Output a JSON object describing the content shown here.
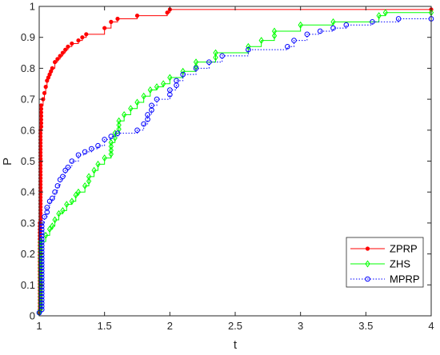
{
  "chart_data": {
    "type": "line",
    "xlabel": "t",
    "ylabel": "P",
    "xlim": [
      1,
      4
    ],
    "ylim": [
      0,
      1
    ],
    "x_ticks": [
      1,
      1.5,
      2,
      2.5,
      3,
      3.5,
      4
    ],
    "x_tick_labels": [
      "1",
      "1.5",
      "2",
      "2.5",
      "3",
      "3.5",
      "4"
    ],
    "y_ticks": [
      0,
      0.1,
      0.2,
      0.3,
      0.4,
      0.5,
      0.6,
      0.7,
      0.8,
      0.9,
      1
    ],
    "y_tick_labels": [
      "0",
      "0.1",
      "0.2",
      "0.3",
      "0.4",
      "0.5",
      "0.6",
      "0.7",
      "0.8",
      "0.9",
      "1"
    ],
    "grid": false,
    "legend_position": "bottom-right",
    "series": [
      {
        "name": "ZPRP",
        "color": "#ff0000",
        "line_style": "solid",
        "marker": "dot",
        "points": [
          [
            1,
            0.01
          ],
          [
            1.005,
            0.3
          ],
          [
            1.01,
            0.6
          ],
          [
            1.015,
            0.68
          ],
          [
            1.03,
            0.7
          ],
          [
            1.04,
            0.72
          ],
          [
            1.05,
            0.74
          ],
          [
            1.06,
            0.76
          ],
          [
            1.07,
            0.77
          ],
          [
            1.08,
            0.78
          ],
          [
            1.09,
            0.79
          ],
          [
            1.1,
            0.8
          ],
          [
            1.12,
            0.82
          ],
          [
            1.14,
            0.83
          ],
          [
            1.16,
            0.84
          ],
          [
            1.18,
            0.85
          ],
          [
            1.2,
            0.86
          ],
          [
            1.22,
            0.87
          ],
          [
            1.25,
            0.88
          ],
          [
            1.3,
            0.89
          ],
          [
            1.33,
            0.9
          ],
          [
            1.36,
            0.91
          ],
          [
            1.5,
            0.93
          ],
          [
            1.55,
            0.95
          ],
          [
            1.6,
            0.96
          ],
          [
            1.75,
            0.97
          ],
          [
            1.98,
            0.98
          ],
          [
            2.0,
            0.99
          ],
          [
            4,
            0.99
          ]
        ]
      },
      {
        "name": "ZHS",
        "color": "#00ff00",
        "line_style": "solid",
        "marker": "diamond",
        "points": [
          [
            1,
            0.01
          ],
          [
            1.01,
            0.24
          ],
          [
            1.05,
            0.26
          ],
          [
            1.08,
            0.28
          ],
          [
            1.1,
            0.29
          ],
          [
            1.12,
            0.31
          ],
          [
            1.15,
            0.33
          ],
          [
            1.18,
            0.34
          ],
          [
            1.21,
            0.36
          ],
          [
            1.25,
            0.37
          ],
          [
            1.28,
            0.39
          ],
          [
            1.3,
            0.4
          ],
          [
            1.35,
            0.42
          ],
          [
            1.38,
            0.45
          ],
          [
            1.42,
            0.47
          ],
          [
            1.45,
            0.49
          ],
          [
            1.5,
            0.51
          ],
          [
            1.55,
            0.56
          ],
          [
            1.58,
            0.59
          ],
          [
            1.61,
            0.63
          ],
          [
            1.65,
            0.65
          ],
          [
            1.7,
            0.67
          ],
          [
            1.75,
            0.69
          ],
          [
            1.8,
            0.71
          ],
          [
            1.85,
            0.73
          ],
          [
            1.9,
            0.74
          ],
          [
            1.95,
            0.75
          ],
          [
            2.0,
            0.77
          ],
          [
            2.1,
            0.79
          ],
          [
            2.2,
            0.82
          ],
          [
            2.35,
            0.85
          ],
          [
            2.6,
            0.87
          ],
          [
            2.7,
            0.89
          ],
          [
            2.8,
            0.92
          ],
          [
            3.0,
            0.94
          ],
          [
            3.25,
            0.95
          ],
          [
            3.6,
            0.97
          ],
          [
            3.65,
            0.98
          ],
          [
            4,
            0.98
          ]
        ]
      },
      {
        "name": "MPRP",
        "color": "#0000ff",
        "line_style": "dotted",
        "marker": "circle",
        "points": [
          [
            1,
            0.01
          ],
          [
            1.02,
            0.3
          ],
          [
            1.04,
            0.32
          ],
          [
            1.06,
            0.35
          ],
          [
            1.08,
            0.37
          ],
          [
            1.1,
            0.38
          ],
          [
            1.12,
            0.4
          ],
          [
            1.14,
            0.42
          ],
          [
            1.16,
            0.44
          ],
          [
            1.18,
            0.45
          ],
          [
            1.2,
            0.47
          ],
          [
            1.22,
            0.48
          ],
          [
            1.25,
            0.5
          ],
          [
            1.3,
            0.52
          ],
          [
            1.35,
            0.53
          ],
          [
            1.4,
            0.54
          ],
          [
            1.45,
            0.55
          ],
          [
            1.5,
            0.57
          ],
          [
            1.55,
            0.58
          ],
          [
            1.6,
            0.59
          ],
          [
            1.75,
            0.6
          ],
          [
            1.8,
            0.62
          ],
          [
            1.83,
            0.65
          ],
          [
            1.86,
            0.68
          ],
          [
            1.9,
            0.7
          ],
          [
            2.0,
            0.73
          ],
          [
            2.05,
            0.76
          ],
          [
            2.1,
            0.78
          ],
          [
            2.2,
            0.8
          ],
          [
            2.3,
            0.82
          ],
          [
            2.4,
            0.84
          ],
          [
            2.6,
            0.86
          ],
          [
            2.9,
            0.87
          ],
          [
            2.95,
            0.89
          ],
          [
            3.05,
            0.91
          ],
          [
            3.15,
            0.92
          ],
          [
            3.25,
            0.93
          ],
          [
            3.35,
            0.94
          ],
          [
            3.55,
            0.95
          ],
          [
            3.75,
            0.96
          ],
          [
            4,
            0.96
          ]
        ]
      }
    ]
  },
  "colors": {
    "axis": "#262626",
    "background": "#ffffff",
    "legend_border": "#262626"
  }
}
